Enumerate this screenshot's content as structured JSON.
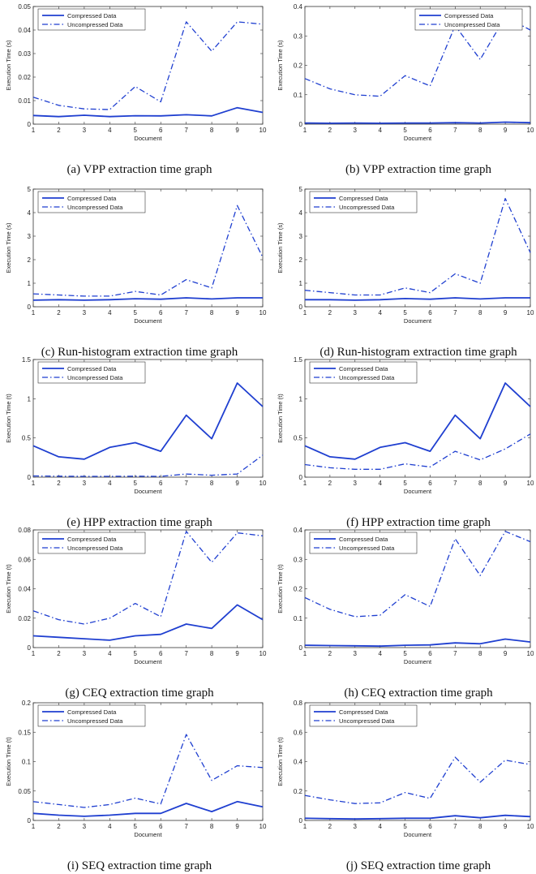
{
  "chart_data": [
    {
      "type": "line",
      "id": "a",
      "caption": "(a) VPP extraction time graph",
      "xlabel": "Document",
      "ylabel": "Execution Time (s)",
      "x": [
        1,
        2,
        3,
        4,
        5,
        6,
        7,
        8,
        9,
        10
      ],
      "xlim": [
        1,
        10
      ],
      "ylim": [
        0,
        0.05
      ],
      "yticks": [
        "0",
        "0.01",
        "0.02",
        "0.03",
        "0.04",
        "0.05"
      ],
      "legend_placement": "top-left",
      "series": [
        {
          "name": "Compressed Data",
          "style": "solid",
          "values": [
            0.0037,
            0.0032,
            0.0038,
            0.0032,
            0.0036,
            0.0035,
            0.004,
            0.0035,
            0.007,
            0.005
          ]
        },
        {
          "name": "Uncompressed Data",
          "style": "dashdot",
          "values": [
            0.0115,
            0.008,
            0.0065,
            0.0062,
            0.016,
            0.0095,
            0.0435,
            0.031,
            0.0435,
            0.0425
          ]
        }
      ]
    },
    {
      "type": "line",
      "id": "b",
      "caption": "(b) VPP extraction time graph",
      "xlabel": "Document",
      "ylabel": "Execution Time (s)",
      "x": [
        1,
        2,
        3,
        4,
        5,
        6,
        7,
        8,
        9,
        10
      ],
      "xlim": [
        1,
        10
      ],
      "ylim": [
        0,
        0.4
      ],
      "yticks": [
        "0",
        "0.1",
        "0.2",
        "0.3",
        "0.4"
      ],
      "legend_placement": "top-right",
      "series": [
        {
          "name": "Compressed Data",
          "style": "solid",
          "values": [
            0.004,
            0.003,
            0.004,
            0.003,
            0.004,
            0.004,
            0.005,
            0.004,
            0.007,
            0.005
          ]
        },
        {
          "name": "Uncompressed Data",
          "style": "dashdot",
          "values": [
            0.155,
            0.12,
            0.1,
            0.095,
            0.165,
            0.13,
            0.335,
            0.22,
            0.365,
            0.32
          ]
        }
      ]
    },
    {
      "type": "line",
      "id": "c",
      "caption": "(c) Run-histogram extraction time graph",
      "xlabel": "Document",
      "ylabel": "Execution Time (s)",
      "x": [
        1,
        2,
        3,
        4,
        5,
        6,
        7,
        8,
        9,
        10
      ],
      "xlim": [
        1,
        10
      ],
      "ylim": [
        0,
        5
      ],
      "yticks": [
        "0",
        "1",
        "2",
        "3",
        "4",
        "5"
      ],
      "legend_placement": "top-left",
      "series": [
        {
          "name": "Compressed Data",
          "style": "solid",
          "values": [
            0.28,
            0.3,
            0.28,
            0.3,
            0.34,
            0.32,
            0.38,
            0.33,
            0.38,
            0.38
          ]
        },
        {
          "name": "Uncompressed Data",
          "style": "dashdot",
          "values": [
            0.55,
            0.5,
            0.45,
            0.45,
            0.65,
            0.5,
            1.15,
            0.8,
            4.3,
            2.1
          ]
        }
      ]
    },
    {
      "type": "line",
      "id": "d",
      "caption": "(d) Run-histogram extraction time graph",
      "xlabel": "Document",
      "ylabel": "Execution Time (s)",
      "x": [
        1,
        2,
        3,
        4,
        5,
        6,
        7,
        8,
        9,
        10
      ],
      "xlim": [
        1,
        10
      ],
      "ylim": [
        0,
        5
      ],
      "yticks": [
        "0",
        "1",
        "2",
        "3",
        "4",
        "5"
      ],
      "legend_placement": "top-left",
      "series": [
        {
          "name": "Compressed Data",
          "style": "solid",
          "values": [
            0.3,
            0.3,
            0.28,
            0.3,
            0.35,
            0.32,
            0.38,
            0.33,
            0.38,
            0.38
          ]
        },
        {
          "name": "Uncompressed Data",
          "style": "dashdot",
          "values": [
            0.7,
            0.6,
            0.5,
            0.5,
            0.8,
            0.6,
            1.4,
            1.0,
            4.6,
            2.3
          ]
        }
      ]
    },
    {
      "type": "line",
      "id": "e",
      "caption": "(e) HPP extraction time graph",
      "xlabel": "Document",
      "ylabel": "Execution Time (t)",
      "x": [
        1,
        2,
        3,
        4,
        5,
        6,
        7,
        8,
        9,
        10
      ],
      "xlim": [
        1,
        10
      ],
      "ylim": [
        0,
        1.5
      ],
      "yticks": [
        "0",
        "0.5",
        "1",
        "1.5"
      ],
      "legend_placement": "top-left",
      "series": [
        {
          "name": "Compressed Data",
          "style": "solid",
          "values": [
            0.4,
            0.26,
            0.23,
            0.38,
            0.44,
            0.33,
            0.79,
            0.49,
            1.2,
            0.9
          ]
        },
        {
          "name": "Uncompressed Data",
          "style": "dashdot",
          "values": [
            0.015,
            0.012,
            0.01,
            0.01,
            0.012,
            0.01,
            0.04,
            0.025,
            0.04,
            0.28
          ]
        }
      ]
    },
    {
      "type": "line",
      "id": "f",
      "caption": "(f) HPP extraction time graph",
      "xlabel": "Document",
      "ylabel": "Execution Time (t)",
      "x": [
        1,
        2,
        3,
        4,
        5,
        6,
        7,
        8,
        9,
        10
      ],
      "xlim": [
        1,
        10
      ],
      "ylim": [
        0,
        1.5
      ],
      "yticks": [
        "0",
        "0.5",
        "1",
        "1.5"
      ],
      "legend_placement": "top-left",
      "series": [
        {
          "name": "Compressed Data",
          "style": "solid",
          "values": [
            0.4,
            0.26,
            0.23,
            0.38,
            0.44,
            0.33,
            0.79,
            0.49,
            1.2,
            0.9
          ]
        },
        {
          "name": "Uncompressed Data",
          "style": "dashdot",
          "values": [
            0.16,
            0.12,
            0.1,
            0.1,
            0.17,
            0.13,
            0.33,
            0.22,
            0.36,
            0.55
          ]
        }
      ]
    },
    {
      "type": "line",
      "id": "g",
      "caption": "(g) CEQ extraction time graph",
      "xlabel": "Document",
      "ylabel": "Execution Time (t)",
      "x": [
        1,
        2,
        3,
        4,
        5,
        6,
        7,
        8,
        9,
        10
      ],
      "xlim": [
        1,
        10
      ],
      "ylim": [
        0,
        0.08
      ],
      "yticks": [
        "0",
        "0.02",
        "0.04",
        "0.06",
        "0.08"
      ],
      "legend_placement": "top-left",
      "series": [
        {
          "name": "Compressed Data",
          "style": "solid",
          "values": [
            0.008,
            0.007,
            0.006,
            0.005,
            0.008,
            0.009,
            0.016,
            0.013,
            0.029,
            0.019
          ]
        },
        {
          "name": "Uncompressed Data",
          "style": "dashdot",
          "values": [
            0.025,
            0.019,
            0.016,
            0.02,
            0.03,
            0.021,
            0.079,
            0.058,
            0.078,
            0.076
          ]
        }
      ]
    },
    {
      "type": "line",
      "id": "h",
      "caption": "(h) CEQ extraction time graph",
      "xlabel": "Document",
      "ylabel": "Execution Time (t)",
      "x": [
        1,
        2,
        3,
        4,
        5,
        6,
        7,
        8,
        9,
        10
      ],
      "xlim": [
        1,
        10
      ],
      "ylim": [
        0,
        0.4
      ],
      "yticks": [
        "0",
        "0.1",
        "0.2",
        "0.3",
        "0.4"
      ],
      "legend_placement": "top-left",
      "series": [
        {
          "name": "Compressed Data",
          "style": "solid",
          "values": [
            0.008,
            0.007,
            0.006,
            0.005,
            0.008,
            0.009,
            0.016,
            0.013,
            0.029,
            0.019
          ]
        },
        {
          "name": "Uncompressed Data",
          "style": "dashdot",
          "values": [
            0.17,
            0.13,
            0.105,
            0.11,
            0.18,
            0.14,
            0.37,
            0.245,
            0.395,
            0.36
          ]
        }
      ]
    },
    {
      "type": "line",
      "id": "i",
      "caption": "(i) SEQ extraction time graph",
      "xlabel": "Document",
      "ylabel": "Execution Time (t)",
      "x": [
        1,
        2,
        3,
        4,
        5,
        6,
        7,
        8,
        9,
        10
      ],
      "xlim": [
        1,
        10
      ],
      "ylim": [
        0,
        0.2
      ],
      "yticks": [
        "0",
        "0.05",
        "0.1",
        "0.15",
        "0.2"
      ],
      "legend_placement": "top-left",
      "series": [
        {
          "name": "Compressed Data",
          "style": "solid",
          "values": [
            0.012,
            0.009,
            0.007,
            0.009,
            0.012,
            0.012,
            0.029,
            0.015,
            0.032,
            0.023
          ]
        },
        {
          "name": "Uncompressed Data",
          "style": "dashdot",
          "values": [
            0.032,
            0.027,
            0.022,
            0.027,
            0.038,
            0.028,
            0.146,
            0.068,
            0.093,
            0.09
          ]
        }
      ]
    },
    {
      "type": "line",
      "id": "j",
      "caption": "(j) SEQ extraction time graph",
      "xlabel": "Document",
      "ylabel": "Execution Time (t)",
      "x": [
        1,
        2,
        3,
        4,
        5,
        6,
        7,
        8,
        9,
        10
      ],
      "xlim": [
        1,
        10
      ],
      "ylim": [
        0,
        0.8
      ],
      "yticks": [
        "0",
        "0.2",
        "0.4",
        "0.6",
        "0.8"
      ],
      "legend_placement": "top-left",
      "series": [
        {
          "name": "Compressed Data",
          "style": "solid",
          "values": [
            0.015,
            0.012,
            0.01,
            0.012,
            0.015,
            0.015,
            0.032,
            0.018,
            0.035,
            0.026
          ]
        },
        {
          "name": "Uncompressed Data",
          "style": "dashdot",
          "values": [
            0.17,
            0.14,
            0.115,
            0.12,
            0.19,
            0.15,
            0.43,
            0.26,
            0.41,
            0.38
          ]
        }
      ]
    }
  ]
}
